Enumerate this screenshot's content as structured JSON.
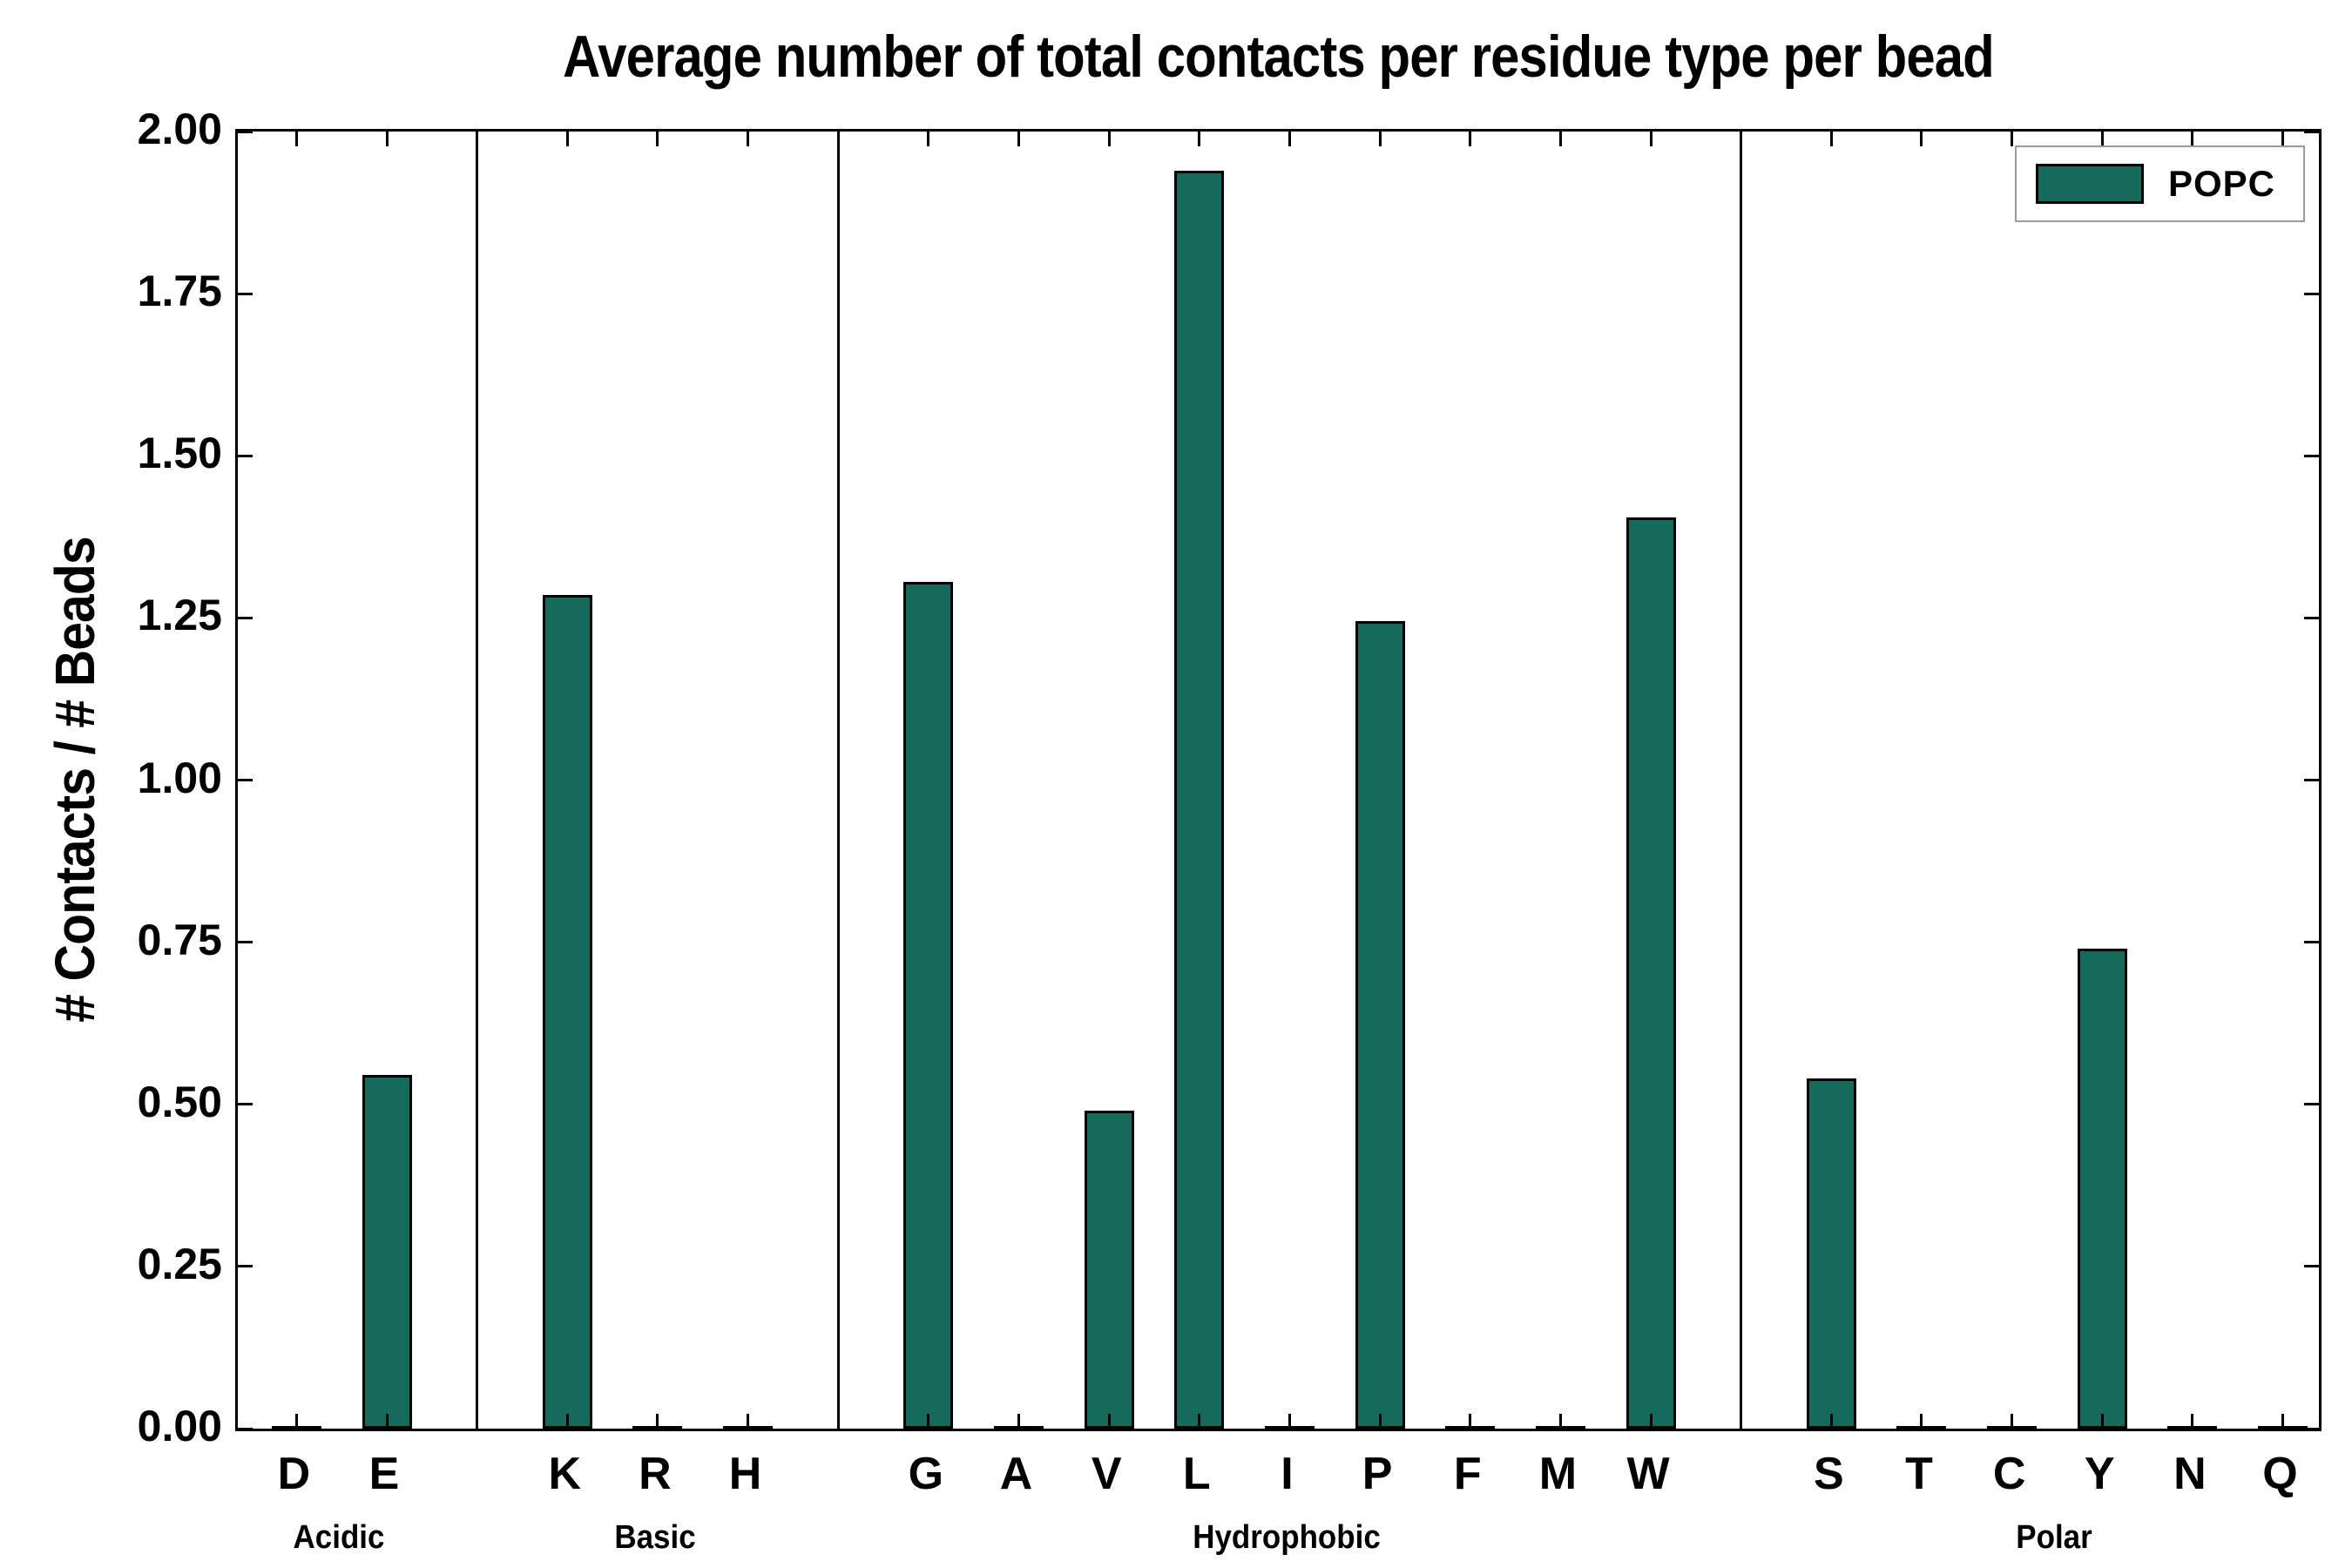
{
  "chart_data": {
    "type": "bar",
    "title": "Average number of total contacts per residue type per bead",
    "ylabel": "# Contacts / # Beads",
    "xlabel": "",
    "ylim": [
      0.0,
      2.0
    ],
    "yticks": [
      0.0,
      0.25,
      0.5,
      0.75,
      1.0,
      1.25,
      1.5,
      1.75,
      2.0
    ],
    "grid": false,
    "bar_color": "#156a5b",
    "bar_edge_color": "#000000",
    "legend": {
      "position": "upper right",
      "entries": [
        {
          "label": "POPC",
          "color": "#156a5b"
        }
      ]
    },
    "groups": [
      {
        "label": "Acidic",
        "categories": [
          "D",
          "E"
        ],
        "values": [
          0.0,
          0.545
        ]
      },
      {
        "label": "Basic",
        "categories": [
          "K",
          "R",
          "H"
        ],
        "values": [
          1.285,
          0.0,
          0.0
        ]
      },
      {
        "label": "Hydrophobic",
        "categories": [
          "G",
          "A",
          "V",
          "L",
          "I",
          "P",
          "F",
          "M",
          "W"
        ],
        "values": [
          1.305,
          0.0,
          0.49,
          1.94,
          0.0,
          1.245,
          0.0,
          0.0,
          1.405
        ]
      },
      {
        "label": "Polar",
        "categories": [
          "S",
          "T",
          "C",
          "Y",
          "N",
          "Q"
        ],
        "values": [
          0.54,
          0.0,
          0.0,
          0.74,
          0.0,
          0.0
        ]
      }
    ]
  }
}
